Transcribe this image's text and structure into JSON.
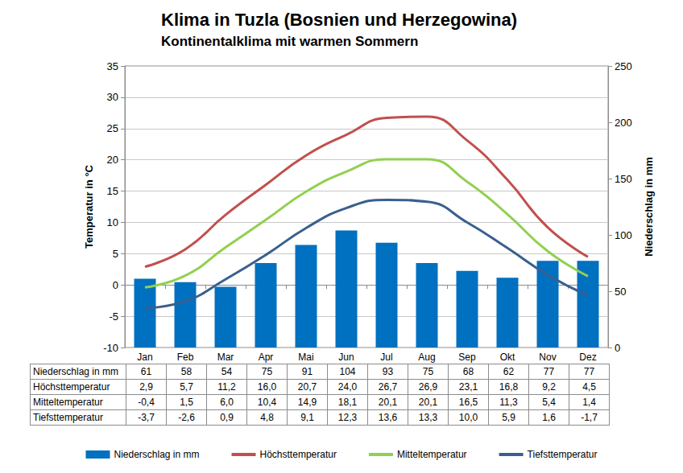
{
  "chart_data": {
    "type": "bar",
    "title": "Klima in Tuzla (Bosnien und Herzegowina)",
    "subtitle": "Kontinentalklima mit warmen Sommern",
    "y_label": "Temperatur in °C",
    "y2_label": "Niederschlag in mm",
    "categories": [
      "Jan",
      "Feb",
      "Mar",
      "Apr",
      "Mai",
      "Jun",
      "Jul",
      "Aug",
      "Sep",
      "Okt",
      "Nov",
      "Dez"
    ],
    "ylim": [
      -10,
      35
    ],
    "yticks": [
      -10,
      -5,
      0,
      5,
      10,
      15,
      20,
      25,
      30,
      35
    ],
    "y2lim": [
      0,
      250
    ],
    "y2ticks": [
      0,
      50,
      100,
      150,
      200,
      250
    ],
    "grid": true,
    "legend": "bottom",
    "series": [
      {
        "name": "Niederschlag in mm",
        "type": "bar",
        "axis": "y2",
        "color": "#0070C0",
        "values": [
          61,
          58,
          54,
          75,
          91,
          104,
          93,
          75,
          68,
          62,
          77,
          77
        ]
      },
      {
        "name": "Höchsttemperatur",
        "type": "line",
        "color": "#C0504D",
        "values": [
          2.9,
          5.7,
          11.2,
          16.0,
          20.7,
          24.0,
          26.7,
          26.9,
          23.1,
          16.8,
          9.2,
          4.5
        ],
        "value_labels": [
          "2,9",
          "5,7",
          "11,2",
          "16,0",
          "20,7",
          "24,0",
          "26,7",
          "26,9",
          "23,1",
          "16,8",
          "9,2",
          "4,5"
        ]
      },
      {
        "name": "Mitteltemperatur",
        "type": "line",
        "color": "#92D050",
        "values": [
          -0.4,
          1.5,
          6.0,
          10.4,
          14.9,
          18.1,
          20.1,
          20.1,
          16.5,
          11.3,
          5.4,
          1.4
        ],
        "value_labels": [
          "-0,4",
          "1,5",
          "6,0",
          "10,4",
          "14,9",
          "18,1",
          "20,1",
          "20,1",
          "16,5",
          "11,3",
          "5,4",
          "1,4"
        ]
      },
      {
        "name": "Tiefsttemperatur",
        "type": "line",
        "color": "#3A5F8F",
        "values": [
          -3.7,
          -2.6,
          0.9,
          4.8,
          9.1,
          12.3,
          13.6,
          13.3,
          10.0,
          5.9,
          1.6,
          -1.7
        ],
        "value_labels": [
          "-3,7",
          "-2,6",
          "0,9",
          "4,8",
          "9,1",
          "12,3",
          "13,6",
          "13,3",
          "10,0",
          "5,9",
          "1,6",
          "-1,7"
        ]
      }
    ]
  }
}
